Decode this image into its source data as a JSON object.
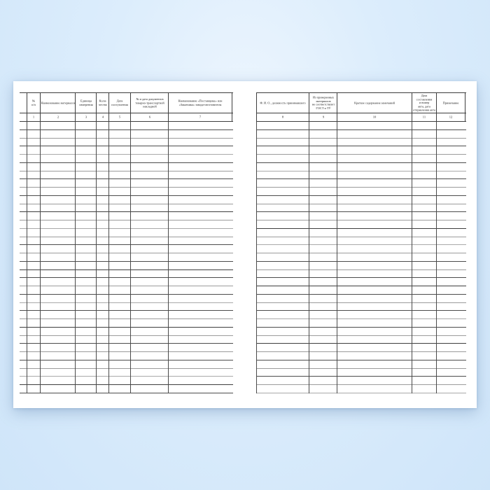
{
  "document": {
    "kind": "blank-ledger-spread",
    "sheet_color": "#ffffff",
    "background_top": "#eef6fe",
    "background_bottom": "#cfe5f9",
    "line_color_dark": "#3d3d3d",
    "line_color_light": "#9b9b9b"
  },
  "left_table": {
    "row_count": 33,
    "columns": [
      {
        "number": "1",
        "label": "№\nп/п"
      },
      {
        "number": "2",
        "label": "Наименование материалов"
      },
      {
        "number": "3",
        "label": "Единица\nизмерения"
      },
      {
        "number": "4",
        "label": "Коли-\nчество"
      },
      {
        "number": "5",
        "label": "Дата\nпоступления"
      },
      {
        "number": "6",
        "label": "№ и дата документов\nтоварно-транспортной\nнакладной"
      },
      {
        "number": "7",
        "label": "Наименование «Поставщика» или\n«Заказчика» завода-изготовителя"
      }
    ]
  },
  "right_table": {
    "row_count": 33,
    "columns": [
      {
        "number": "8",
        "label": "Ф. И. О., должность принимавшего"
      },
      {
        "number": "9",
        "label": "Из проверенных\nматериалов\nне соответствуют\nГОСТ и ТУ"
      },
      {
        "number": "10",
        "label": "Краткое содержание замечаний"
      },
      {
        "number": "11",
        "label": "Дата\nсоставления\nи номер\nакта, дата\nотправления акта"
      },
      {
        "number": "12",
        "label": "Примечание"
      }
    ]
  }
}
